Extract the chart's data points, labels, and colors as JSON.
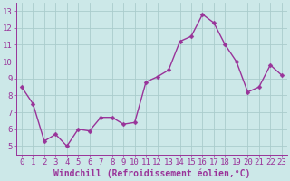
{
  "x": [
    0,
    1,
    2,
    3,
    4,
    5,
    6,
    7,
    8,
    9,
    10,
    11,
    12,
    13,
    14,
    15,
    16,
    17,
    18,
    19,
    20,
    21,
    22,
    23
  ],
  "y": [
    8.5,
    7.5,
    5.3,
    5.7,
    5.0,
    6.0,
    5.9,
    6.7,
    6.7,
    6.3,
    6.4,
    8.8,
    9.1,
    9.5,
    11.2,
    11.5,
    12.8,
    12.3,
    11.0,
    10.0,
    8.2,
    8.5,
    9.8,
    9.2
  ],
  "line_color": "#993399",
  "marker": "D",
  "marker_size": 2.5,
  "line_width": 1.0,
  "bg_color": "#cce8e8",
  "grid_color": "#aacccc",
  "tick_color": "#993399",
  "label_color": "#993399",
  "xlabel": "Windchill (Refroidissement éolien,°C)",
  "ylim": [
    4.5,
    13.5
  ],
  "xlim": [
    -0.5,
    23.5
  ],
  "yticks": [
    5,
    6,
    7,
    8,
    9,
    10,
    11,
    12,
    13
  ],
  "xticks": [
    0,
    1,
    2,
    3,
    4,
    5,
    6,
    7,
    8,
    9,
    10,
    11,
    12,
    13,
    14,
    15,
    16,
    17,
    18,
    19,
    20,
    21,
    22,
    23
  ],
  "tick_fontsize": 6.5,
  "xlabel_fontsize": 7.0
}
